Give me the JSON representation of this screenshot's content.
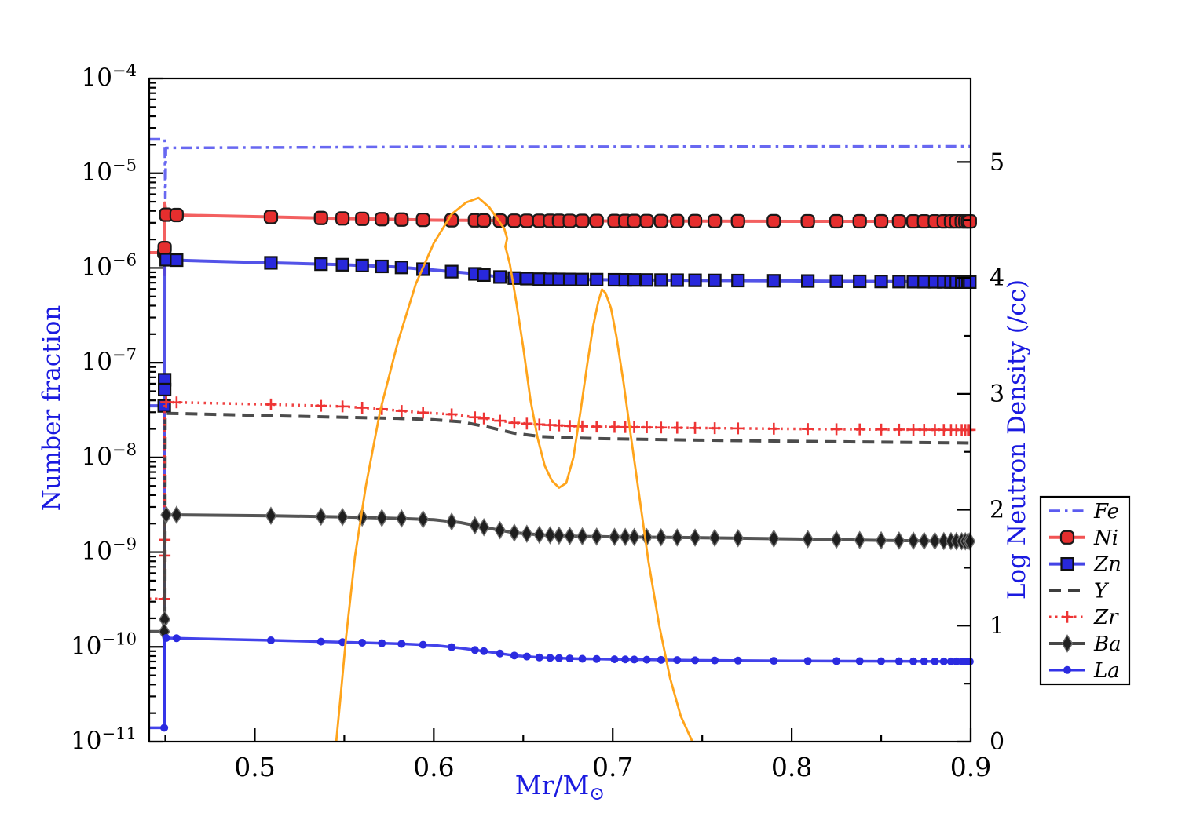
{
  "figure": {
    "background": "#ffffff",
    "text_color": "#1a1ae0",
    "axis_color": "#000000",
    "labels": {
      "y_left": "Number fraction",
      "y_right": "Log Neutron Density (/cc)",
      "x_main": "Mr/M",
      "x_sub": "⊙"
    },
    "legend": {
      "items": [
        "Fe",
        "Ni",
        "Zn",
        "Y",
        "Zr",
        "Ba",
        "La"
      ]
    }
  },
  "chart_data": {
    "type": "line",
    "title": "",
    "xlabel": "Mr/M⊙",
    "ylabel_left": "Number fraction",
    "ylabel_right": "Log Neutron Density (/cc)",
    "x_axis": {
      "range": [
        0.441,
        0.9
      ],
      "major_ticks": [
        0.5,
        0.6,
        0.7,
        0.8,
        0.9
      ],
      "major_tick_labels": [
        "0.5",
        "0.6",
        "0.7",
        "0.8",
        "0.9"
      ],
      "minor_ticks": [
        0.45,
        0.55,
        0.65,
        0.75,
        0.85
      ]
    },
    "y_left_axis": {
      "type": "log",
      "range": [
        1e-11,
        0.0001
      ],
      "major_tick_exponents": [
        -4,
        -5,
        -6,
        -7,
        -8,
        -9,
        -10,
        -11
      ]
    },
    "y_right_axis": {
      "type": "linear",
      "range": [
        0,
        5.72
      ],
      "major_ticks": [
        0,
        1,
        2,
        3,
        4,
        5
      ],
      "major_tick_labels": [
        "0",
        "1",
        "2",
        "3",
        "4",
        "5"
      ],
      "minor_step": 0.5
    },
    "marker_x": [
      0.4505,
      0.4563,
      0.509,
      0.537,
      0.549,
      0.56,
      0.571,
      0.582,
      0.594,
      0.61,
      0.623,
      0.628,
      0.637,
      0.645,
      0.652,
      0.659,
      0.665,
      0.67,
      0.676,
      0.683,
      0.691,
      0.701,
      0.707,
      0.712,
      0.719,
      0.727,
      0.736,
      0.746,
      0.757,
      0.77,
      0.79,
      0.809,
      0.825,
      0.838,
      0.85,
      0.86,
      0.868,
      0.874,
      0.88,
      0.885,
      0.889,
      0.892,
      0.895,
      0.897,
      0.8985,
      0.8995
    ],
    "series": [
      {
        "id": "Fe",
        "label": "Fe",
        "axis": "left",
        "color": "#5b5bf0",
        "width": 3.5,
        "dash": "14 6 3.5 6",
        "marker": "none",
        "points": [
          [
            0.441,
            2.28e-05
          ],
          [
            0.4497,
            2.28e-05
          ],
          [
            0.45,
            5.5e-06
          ],
          [
            0.4503,
            1.85e-05
          ],
          [
            0.6,
            1.9e-05
          ],
          [
            0.9,
            1.92e-05
          ]
        ]
      },
      {
        "id": "Ni",
        "label": "Ni",
        "axis": "left",
        "color": "#f25353",
        "width": 4,
        "dash": null,
        "marker": "roundsquare",
        "marker_fill": "#e62e2e",
        "marker_edge": "#1a1a1a",
        "marker_size": 16,
        "points": [
          [
            0.441,
            1.45e-06
          ],
          [
            0.4494,
            1.45e-06
          ],
          [
            0.4496,
            8.5e-07
          ],
          [
            0.4497,
            4.85e-06
          ],
          [
            0.4505,
            3.65e-06
          ],
          [
            0.46,
            3.6e-06
          ],
          [
            0.51,
            3.45e-06
          ],
          [
            0.56,
            3.3e-06
          ],
          [
            0.6,
            3.2e-06
          ],
          [
            0.65,
            3.15e-06
          ],
          [
            0.7,
            3.13e-06
          ],
          [
            0.8,
            3.11e-06
          ],
          [
            0.9,
            3.1e-06
          ]
        ],
        "extra_markers": [
          [
            0.4494,
            1.45e-06
          ],
          [
            0.4496,
            1.62e-06
          ]
        ]
      },
      {
        "id": "Zn",
        "label": "Zn",
        "axis": "left",
        "color": "#4444e6",
        "width": 4,
        "dash": null,
        "marker": "square",
        "marker_fill": "#2828dc",
        "marker_edge": "#111111",
        "marker_size": 15,
        "points": [
          [
            0.441,
            3.5e-08
          ],
          [
            0.4494,
            3.5e-08
          ],
          [
            0.4496,
            1.45e-11
          ],
          [
            0.4498,
            1.25e-06
          ],
          [
            0.4505,
            1.22e-06
          ],
          [
            0.46,
            1.2e-06
          ],
          [
            0.51,
            1.13e-06
          ],
          [
            0.55,
            1.08e-06
          ],
          [
            0.58,
            1.02e-06
          ],
          [
            0.6,
            9.5e-07
          ],
          [
            0.62,
            8.8e-07
          ],
          [
            0.64,
            7.9e-07
          ],
          [
            0.66,
            7.6e-07
          ],
          [
            0.7,
            7.5e-07
          ],
          [
            0.8,
            7.3e-07
          ],
          [
            0.9,
            7.1e-07
          ]
        ],
        "extra_markers": [
          [
            0.4496,
            6.6e-08
          ],
          [
            0.4496,
            5.2e-08
          ],
          [
            0.4494,
            3.5e-08
          ]
        ]
      },
      {
        "id": "Y",
        "label": "Y",
        "axis": "left",
        "color": "#3d3d3d",
        "width": 4,
        "dash": "15 9",
        "marker": "none",
        "points": [
          [
            0.4498,
            2e-10
          ],
          [
            0.4499,
            2.95e-08
          ],
          [
            0.4505,
            2.92e-08
          ],
          [
            0.46,
            2.9e-08
          ],
          [
            0.51,
            2.75e-08
          ],
          [
            0.55,
            2.65e-08
          ],
          [
            0.58,
            2.58e-08
          ],
          [
            0.6,
            2.5e-08
          ],
          [
            0.615,
            2.38e-08
          ],
          [
            0.63,
            2.1e-08
          ],
          [
            0.645,
            1.8e-08
          ],
          [
            0.66,
            1.66e-08
          ],
          [
            0.68,
            1.6e-08
          ],
          [
            0.7,
            1.57e-08
          ],
          [
            0.75,
            1.52e-08
          ],
          [
            0.8,
            1.48e-08
          ],
          [
            0.85,
            1.45e-08
          ],
          [
            0.9,
            1.42e-08
          ]
        ]
      },
      {
        "id": "Zr",
        "label": "Zr",
        "axis": "left",
        "color": "#ee3434",
        "width": 3.5,
        "dash": "2.5 5.5",
        "marker": "plus",
        "marker_fill": "#ee3434",
        "marker_edge": "#ee3434",
        "marker_size": 15,
        "points": [
          [
            0.441,
            3.2e-10
          ],
          [
            0.4494,
            3.2e-10
          ],
          [
            0.4497,
            3.85e-08
          ],
          [
            0.4505,
            3.83e-08
          ],
          [
            0.46,
            3.8e-08
          ],
          [
            0.51,
            3.62e-08
          ],
          [
            0.55,
            3.45e-08
          ],
          [
            0.57,
            3.25e-08
          ],
          [
            0.59,
            3e-08
          ],
          [
            0.61,
            2.85e-08
          ],
          [
            0.63,
            2.55e-08
          ],
          [
            0.645,
            2.32e-08
          ],
          [
            0.66,
            2.22e-08
          ],
          [
            0.68,
            2.13e-08
          ],
          [
            0.7,
            2.1e-08
          ],
          [
            0.75,
            2.04e-08
          ],
          [
            0.8,
            2e-08
          ],
          [
            0.85,
            1.97e-08
          ],
          [
            0.9,
            1.95e-08
          ]
        ],
        "extra_markers": [
          [
            0.4496,
            1.35e-09
          ],
          [
            0.4496,
            9.2e-10
          ],
          [
            0.4494,
            3.2e-10
          ]
        ]
      },
      {
        "id": "Ba",
        "label": "Ba",
        "axis": "left",
        "color": "#474747",
        "width": 4,
        "dash": null,
        "marker": "diamond",
        "marker_fill": "#1f1f1f",
        "marker_edge": "#6e6e6e",
        "marker_size": 21,
        "points": [
          [
            0.441,
            1.45e-10
          ],
          [
            0.4494,
            1.45e-10
          ],
          [
            0.4497,
            2.5e-09
          ],
          [
            0.4505,
            2.48e-09
          ],
          [
            0.51,
            2.42e-09
          ],
          [
            0.55,
            2.35e-09
          ],
          [
            0.58,
            2.27e-09
          ],
          [
            0.6,
            2.2e-09
          ],
          [
            0.615,
            2.05e-09
          ],
          [
            0.63,
            1.8e-09
          ],
          [
            0.645,
            1.6e-09
          ],
          [
            0.66,
            1.52e-09
          ],
          [
            0.68,
            1.47e-09
          ],
          [
            0.7,
            1.45e-09
          ],
          [
            0.75,
            1.42e-09
          ],
          [
            0.8,
            1.38e-09
          ],
          [
            0.85,
            1.33e-09
          ],
          [
            0.9,
            1.3e-09
          ]
        ],
        "extra_markers": [
          [
            0.4496,
            1.95e-10
          ],
          [
            0.4494,
            1.45e-10
          ]
        ]
      },
      {
        "id": "La",
        "label": "La",
        "axis": "left",
        "color": "#3333e8",
        "width": 3.5,
        "dash": null,
        "marker": "dot",
        "marker_fill": "#2b2be0",
        "marker_edge": "#2b2be0",
        "marker_size": 10,
        "points": [
          [
            0.441,
            1.4e-11
          ],
          [
            0.4494,
            1.4e-11
          ],
          [
            0.4497,
            1.25e-10
          ],
          [
            0.4505,
            1.24e-10
          ],
          [
            0.51,
            1.17e-10
          ],
          [
            0.55,
            1.12e-10
          ],
          [
            0.58,
            1.08e-10
          ],
          [
            0.6,
            1.04e-10
          ],
          [
            0.615,
            9.7e-11
          ],
          [
            0.63,
            8.9e-11
          ],
          [
            0.645,
            8.1e-11
          ],
          [
            0.66,
            7.7e-11
          ],
          [
            0.68,
            7.5e-11
          ],
          [
            0.7,
            7.4e-11
          ],
          [
            0.75,
            7.2e-11
          ],
          [
            0.8,
            7.1e-11
          ],
          [
            0.85,
            7.05e-11
          ],
          [
            0.9,
            7e-11
          ]
        ],
        "extra_markers": [
          [
            0.4494,
            1.4e-11
          ]
        ]
      },
      {
        "id": "neutron_density",
        "label": "",
        "axis": "right",
        "color": "#ffa41b",
        "width": 2.8,
        "dash": null,
        "marker": "none",
        "points": [
          [
            0.5455,
            0.0
          ],
          [
            0.548,
            0.4
          ],
          [
            0.551,
            0.9
          ],
          [
            0.556,
            1.6
          ],
          [
            0.562,
            2.2
          ],
          [
            0.57,
            2.85
          ],
          [
            0.58,
            3.45
          ],
          [
            0.59,
            3.95
          ],
          [
            0.6,
            4.3
          ],
          [
            0.61,
            4.55
          ],
          [
            0.618,
            4.65
          ],
          [
            0.625,
            4.69
          ],
          [
            0.631,
            4.61
          ],
          [
            0.636,
            4.5
          ],
          [
            0.6395,
            4.42
          ],
          [
            0.641,
            4.34
          ],
          [
            0.64,
            4.27
          ],
          [
            0.6425,
            4.12
          ],
          [
            0.646,
            3.8
          ],
          [
            0.65,
            3.4
          ],
          [
            0.654,
            2.95
          ],
          [
            0.658,
            2.62
          ],
          [
            0.662,
            2.38
          ],
          [
            0.666,
            2.25
          ],
          [
            0.67,
            2.19
          ],
          [
            0.674,
            2.23
          ],
          [
            0.678,
            2.45
          ],
          [
            0.682,
            2.85
          ],
          [
            0.686,
            3.28
          ],
          [
            0.689,
            3.58
          ],
          [
            0.692,
            3.8
          ],
          [
            0.694,
            3.9
          ],
          [
            0.696,
            3.87
          ],
          [
            0.699,
            3.74
          ],
          [
            0.702,
            3.5
          ],
          [
            0.706,
            3.1
          ],
          [
            0.71,
            2.65
          ],
          [
            0.715,
            2.1
          ],
          [
            0.72,
            1.55
          ],
          [
            0.726,
            1.0
          ],
          [
            0.732,
            0.55
          ],
          [
            0.738,
            0.22
          ],
          [
            0.7445,
            0.0
          ]
        ]
      }
    ]
  }
}
